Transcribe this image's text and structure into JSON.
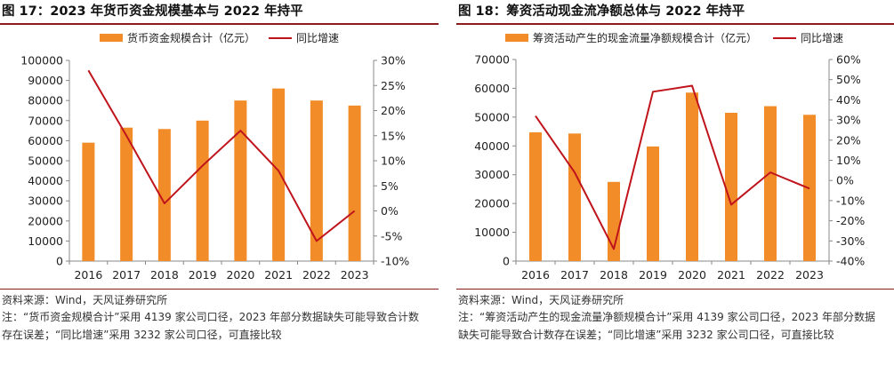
{
  "colors": {
    "bar": "#f28c28",
    "line": "#c0141c",
    "axis": "#888888",
    "rule": "#8c1c1c"
  },
  "panels": [
    {
      "title": "图 17：2023 年货币资金规模基本与 2022 年持平",
      "source": "资料来源：Wind，天风证券研究所",
      "note": "注：“货币资金规模合计”采用 4139 家公司口径，2023 年部分数据缺失可能导致合计数存在误差；“同比增速”采用 3232 家公司口径，可直接比较"
    },
    {
      "title": "图 18：筹资活动现金流净额总体与 2022 年持平",
      "source": "资料来源：Wind，天风证券研究所",
      "note": "注：“筹资活动产生的现金流量净额规模合计”采用 4139 家公司口径，2023 年部分数据缺失可能导致合计数存在误差；“同比增速”采用 3232 家公司口径，可直接比较"
    }
  ],
  "chart_data": [
    {
      "type": "bar+line",
      "categories": [
        "2016",
        "2017",
        "2018",
        "2019",
        "2020",
        "2021",
        "2022",
        "2023"
      ],
      "series": [
        {
          "name": "货币资金规模合计（亿元）",
          "type": "bar",
          "axis": "left",
          "values": [
            59000,
            66500,
            65800,
            70000,
            80000,
            86000,
            80000,
            77500
          ]
        },
        {
          "name": "同比增速",
          "type": "line",
          "axis": "right",
          "values": [
            28,
            15,
            1.5,
            9,
            16,
            8,
            -6,
            0
          ]
        }
      ],
      "left_axis": {
        "ylim": [
          0,
          100000
        ],
        "ticks": [
          "0",
          "10000",
          "20000",
          "30000",
          "40000",
          "50000",
          "60000",
          "70000",
          "80000",
          "90000",
          "100000"
        ]
      },
      "right_axis": {
        "ylim": [
          -10,
          30
        ],
        "ticks": [
          "-10%",
          "-5%",
          "0%",
          "5%",
          "10%",
          "15%",
          "20%",
          "25%",
          "30%"
        ]
      },
      "legend": "top-center",
      "grid": false
    },
    {
      "type": "bar+line",
      "categories": [
        "2016",
        "2017",
        "2018",
        "2019",
        "2020",
        "2021",
        "2022",
        "2023"
      ],
      "series": [
        {
          "name": "筹资活动产生的现金流量净额规模合计（亿元）",
          "type": "bar",
          "axis": "left",
          "values": [
            44700,
            44300,
            27500,
            39800,
            58500,
            51500,
            53800,
            50800
          ]
        },
        {
          "name": "同比增速",
          "type": "line",
          "axis": "right",
          "values": [
            32,
            4,
            -34,
            44,
            47,
            -12,
            4,
            -4
          ]
        }
      ],
      "left_axis": {
        "ylim": [
          0,
          70000
        ],
        "ticks": [
          "0",
          "10000",
          "20000",
          "30000",
          "40000",
          "50000",
          "60000",
          "70000"
        ]
      },
      "right_axis": {
        "ylim": [
          -40,
          60
        ],
        "ticks": [
          "-40%",
          "-30%",
          "-20%",
          "-10%",
          "0%",
          "10%",
          "20%",
          "30%",
          "40%",
          "50%",
          "60%"
        ]
      },
      "legend": "top-center",
      "grid": false
    }
  ]
}
